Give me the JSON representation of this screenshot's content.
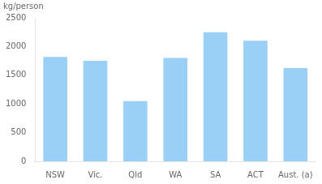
{
  "chart_data": {
    "type": "bar",
    "ylabel": "kg/person",
    "categories": [
      "NSW",
      "Vic.",
      "Qld",
      "WA",
      "SA",
      "ACT",
      "Aust. (a)"
    ],
    "values": [
      1820,
      1750,
      1050,
      1800,
      2250,
      2100,
      1625
    ],
    "ylim": [
      0,
      2500
    ],
    "yticks": [
      0,
      500,
      1000,
      1500,
      2000,
      2500
    ],
    "grid": false
  }
}
